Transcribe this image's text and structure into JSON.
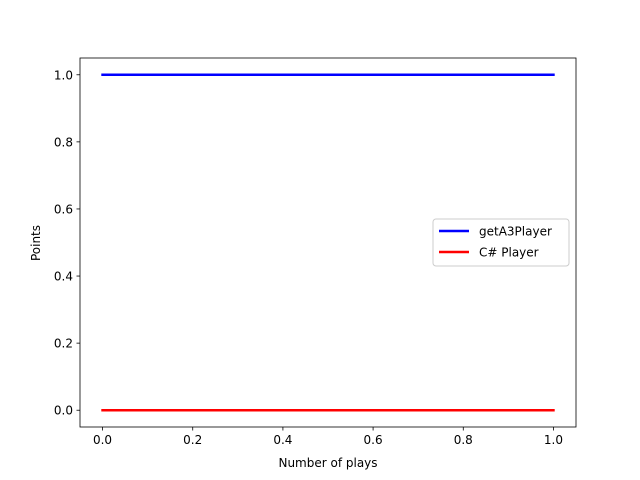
{
  "chart_data": {
    "type": "line",
    "title": "",
    "xlabel": "Number of plays",
    "ylabel": "Points",
    "xlim": [
      -0.05,
      1.05
    ],
    "ylim": [
      -0.05,
      1.05
    ],
    "x_ticks": [
      "0.0",
      "0.2",
      "0.4",
      "0.6",
      "0.8",
      "1.0"
    ],
    "y_ticks": [
      "0.0",
      "0.2",
      "0.4",
      "0.6",
      "0.8",
      "1.0"
    ],
    "grid": false,
    "legend_position": "center-right",
    "series": [
      {
        "name": "getA3Player",
        "color": "#0000ff",
        "x": [
          0.0,
          1.0
        ],
        "y": [
          1.0,
          1.0
        ]
      },
      {
        "name": "C# Player",
        "color": "#ff0000",
        "x": [
          0.0,
          1.0
        ],
        "y": [
          0.0,
          0.0
        ]
      }
    ]
  }
}
